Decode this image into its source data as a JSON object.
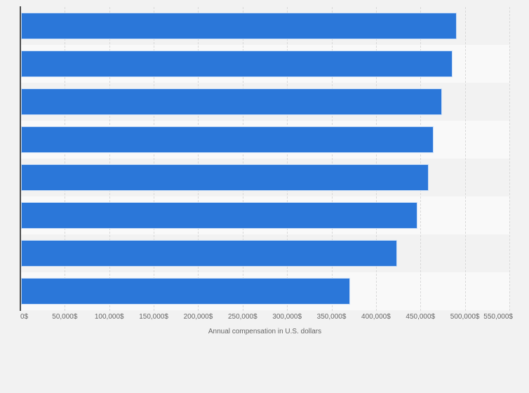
{
  "chart_data": {
    "type": "bar",
    "orientation": "horizontal",
    "title": "",
    "xlabel": "Annual compensation in U.S. dollars",
    "ylabel": "",
    "values": [
      491000,
      486000,
      474000,
      465000,
      459000,
      447000,
      424000,
      371000
    ],
    "x_tick_labels": [
      "0$",
      "50,000$",
      "100,000$",
      "150,000$",
      "200,000$",
      "250,000$",
      "300,000$",
      "350,000$",
      "400,000$",
      "450,000$",
      "500,000$",
      "550,000$"
    ],
    "x_tick_values": [
      0,
      50000,
      100000,
      150000,
      200000,
      250000,
      300000,
      350000,
      400000,
      450000,
      500000,
      550000
    ],
    "xlim": [
      0,
      550000
    ],
    "grid": "vertical-dashed",
    "row_banding": "alternating",
    "legend": "none",
    "category_labels_visible": false,
    "colors": {
      "bar": "#2b77d9",
      "bar_border": "#ffffff",
      "background": "#f2f2f2",
      "stripe_light": "#f9f9f9",
      "gridline": "#d9d9d9",
      "axis_line": "#4c4c4c",
      "label_text": "#666666"
    }
  }
}
